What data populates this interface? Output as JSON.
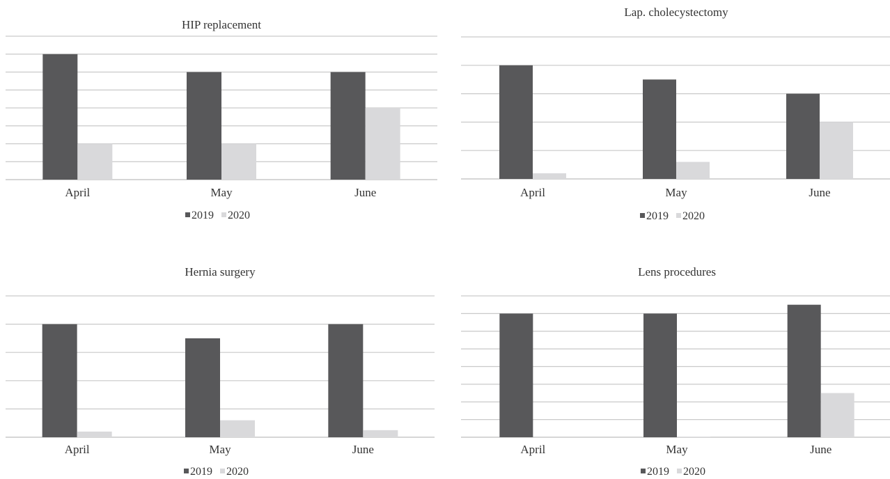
{
  "chart_data": [
    {
      "type": "bar",
      "title": "HIP replacement",
      "categories": [
        "April",
        "May",
        "June"
      ],
      "series": [
        {
          "name": "2019",
          "values": [
            7,
            6,
            6
          ]
        },
        {
          "name": "2020",
          "values": [
            2,
            2,
            4
          ]
        }
      ],
      "ylim": [
        0,
        8
      ],
      "gridlines": 8,
      "grid": true,
      "legend_position": "bottom"
    },
    {
      "type": "bar",
      "title": "Lap. cholecystectomy",
      "categories": [
        "April",
        "May",
        "June"
      ],
      "series": [
        {
          "name": "2019",
          "values": [
            8,
            7,
            6
          ]
        },
        {
          "name": "2020",
          "values": [
            0.4,
            1.2,
            4
          ]
        }
      ],
      "ylim": [
        0,
        10
      ],
      "gridlines": 5,
      "grid": true,
      "legend_position": "bottom"
    },
    {
      "type": "bar",
      "title": "Hernia surgery",
      "categories": [
        "April",
        "May",
        "June"
      ],
      "series": [
        {
          "name": "2019",
          "values": [
            8,
            7,
            8
          ]
        },
        {
          "name": "2020",
          "values": [
            0.4,
            1.2,
            0.5
          ]
        }
      ],
      "ylim": [
        0,
        10
      ],
      "gridlines": 5,
      "grid": true,
      "legend_position": "bottom"
    },
    {
      "type": "bar",
      "title": "Lens procedures",
      "categories": [
        "April",
        "May",
        "June"
      ],
      "series": [
        {
          "name": "2019",
          "values": [
            14,
            14,
            15
          ]
        },
        {
          "name": "2020",
          "values": [
            0,
            0.05,
            5
          ]
        }
      ],
      "ylim": [
        0,
        16
      ],
      "gridlines": 8,
      "grid": true,
      "legend_position": "bottom"
    }
  ],
  "colors": {
    "2019": "#58585a",
    "2020": "#d9d9db"
  }
}
